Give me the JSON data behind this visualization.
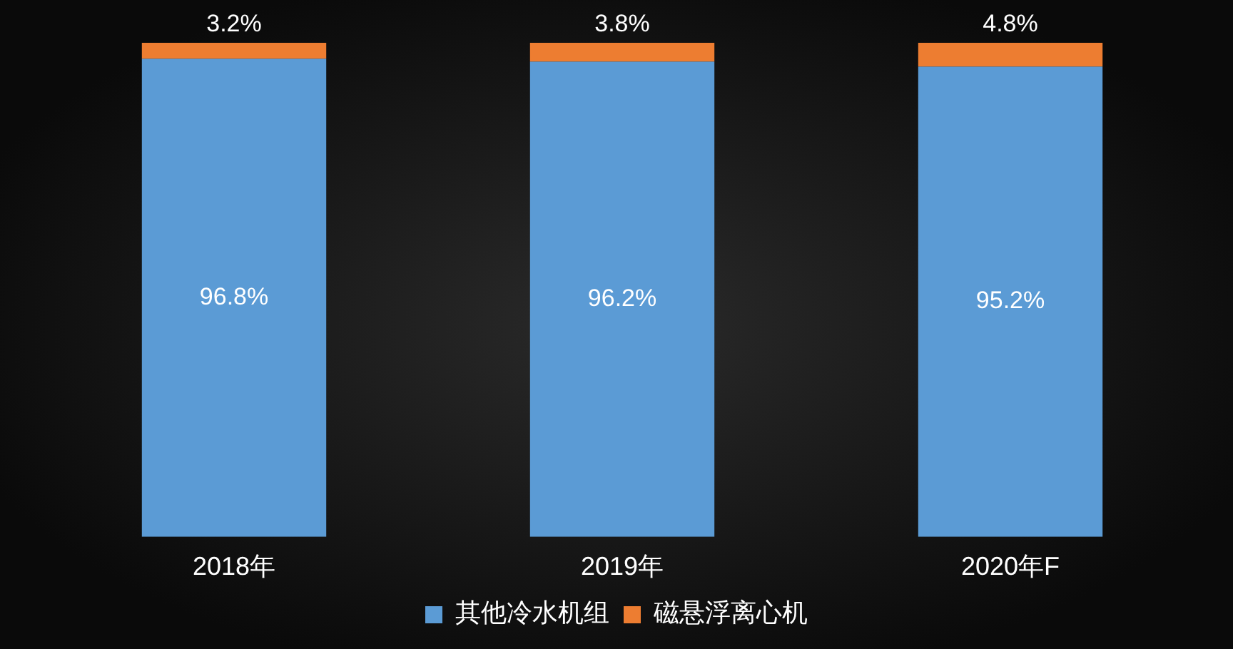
{
  "chart_data": {
    "type": "bar",
    "stacked": true,
    "categories": [
      "2018年",
      "2019年",
      "2020年F"
    ],
    "series": [
      {
        "name": "其他冷水机组",
        "color": "#5b9bd5",
        "values": [
          96.8,
          96.2,
          95.2
        ],
        "value_labels": [
          "96.8%",
          "96.2%",
          "95.2%"
        ]
      },
      {
        "name": "磁悬浮离心机",
        "color": "#ed7d31",
        "values": [
          3.2,
          3.8,
          4.8
        ],
        "value_labels": [
          "3.2%",
          "3.8%",
          "4.8%"
        ]
      }
    ],
    "legend": "bottom",
    "ylim": [
      0,
      100
    ]
  }
}
